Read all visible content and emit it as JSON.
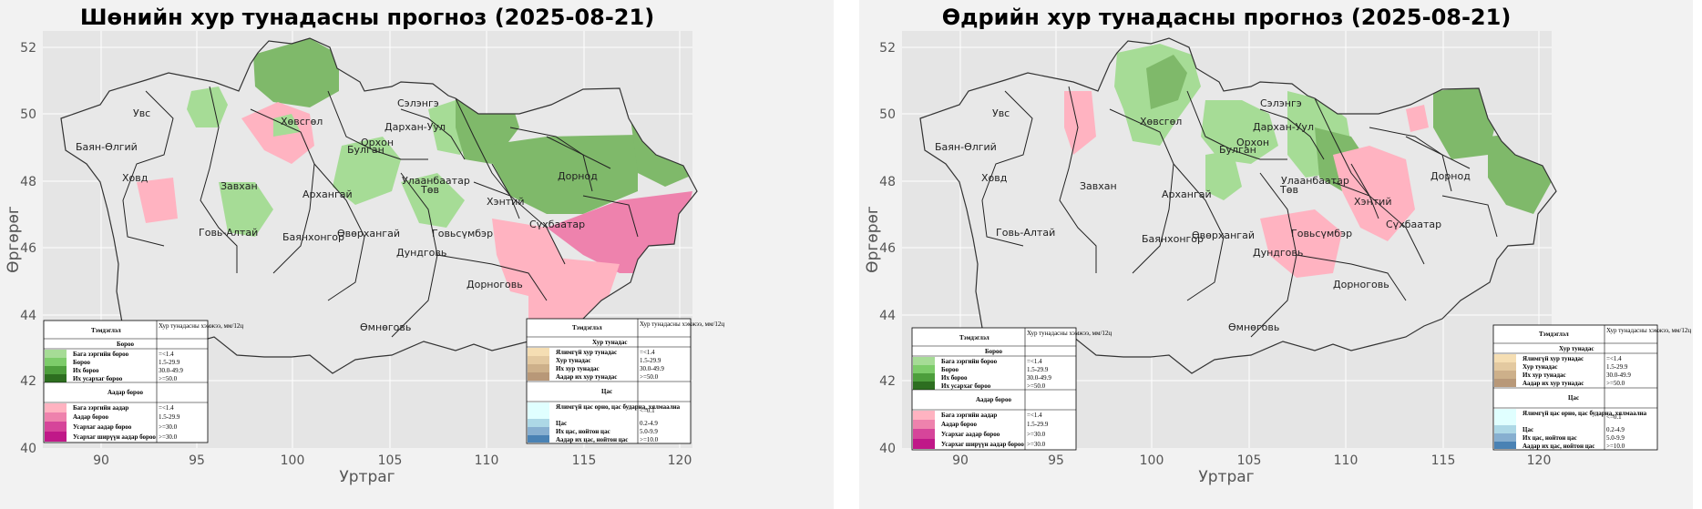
{
  "panels": [
    {
      "title": "Шөнийн хур тунадасны прогноз (2025-08-21)",
      "xlabel": "Уртраг",
      "ylabel": "Өргөрөг",
      "aimag_labels": [
        "Увс",
        "Баян-Өлгий",
        "Ховд",
        "Завхан",
        "Говь-Алтай",
        "Хөвсгөл",
        "Архангай",
        "Баянхонгор",
        "Өвөрхангай",
        "Булган",
        "Орхон",
        "Сэлэнгэ",
        "Дархан-Уул",
        "Төв",
        "Улаанбаатар",
        "Дундговь",
        "Говьсүмбэр",
        "Хэнтий",
        "Дорнод",
        "Сүхбаатар",
        "Дорноговь",
        "Өмнөговь"
      ]
    },
    {
      "title": "Өдрийн хур тунадасны прогноз (2025-08-21)",
      "xlabel": "Уртраг",
      "ylabel": "Өргөрөг",
      "aimag_labels": [
        "Увс",
        "Баян-Өлгий",
        "Ховд",
        "Завхан",
        "Говь-Алтай",
        "Хөвсгөл",
        "Архангай",
        "Баянхонгор",
        "Өвөрхангай",
        "Булган",
        "Орхон",
        "Сэлэнгэ",
        "Дархан-Уул",
        "Төв",
        "Улаанбаатар",
        "Дундговь",
        "Говьсүмбэр",
        "Хэнтий",
        "Дорнод",
        "Сүхбаатар",
        "Дорноговь",
        "Өмнөговь"
      ]
    }
  ],
  "axes": {
    "x_ticks": [
      "90",
      "95",
      "100",
      "105",
      "110",
      "115",
      "120"
    ],
    "y_ticks": [
      "40",
      "42",
      "44",
      "46",
      "48",
      "50",
      "52"
    ],
    "xlim": [
      87,
      121
    ],
    "ylim": [
      40,
      52.5
    ]
  },
  "legend_left": {
    "header_col1": "Тэмдэглэл",
    "header_col2": "Хур тунадасны хэмжээ, мм/12ц",
    "group1": "Бороо",
    "rain_rows": [
      {
        "label": "Бага зэргийн бороо",
        "value": "=<1.4",
        "color": "#a6dc96"
      },
      {
        "label": "Бороо",
        "value": "1.5-29.9",
        "color": "#7dcc6a"
      },
      {
        "label": "Их бороо",
        "value": "30.0-49.9",
        "color": "#4d9e3c"
      },
      {
        "label": "Их усархаг бороо",
        "value": ">=50.0",
        "color": "#2d6e20"
      }
    ],
    "group2": "Аадар бороо",
    "shower_rows": [
      {
        "label": "Бага зэргийн аадар",
        "value": "=<1.4",
        "color": "#ffb3c1"
      },
      {
        "label": "Аадар бороо",
        "value": "1.5-29.9",
        "color": "#ee82ad"
      },
      {
        "label": "Усархаг аадар бороо",
        "value": ">=30.0",
        "color": "#d6459a"
      },
      {
        "label": "Усархаг ширүүн аадар бороо",
        "value": ">=30.0",
        "color": "#c01888"
      }
    ]
  },
  "legend_right": {
    "header_col1": "Тэмдэглэл",
    "header_col2": "Хур тунадасны хэмжээ, мм/12ц",
    "group1": "Хур тунадас",
    "mix_rows": [
      {
        "label": "Ялимгүй хур тунадас",
        "value": "=<1.4",
        "color": "#f5deb3"
      },
      {
        "label": "Хур тунадас",
        "value": "1.5-29.9",
        "color": "#e3c9a0"
      },
      {
        "label": "Их хур тунадас",
        "value": "30.0-49.9",
        "color": "#cdb08a"
      },
      {
        "label": "Аадар их хур тунадас",
        "value": ">=50.0",
        "color": "#b89878"
      }
    ],
    "group2": "Цас",
    "snow_rows": [
      {
        "label": "Ялимгүй цас орно, цас бударна, хялмаална",
        "value": "<=0.1",
        "color": "#e0ffff"
      },
      {
        "label": "Цас",
        "value": "0.2-4.9",
        "color": "#add8e6"
      },
      {
        "label": "Их цас, нойтон цас",
        "value": "5.0-9.9",
        "color": "#87afd0"
      },
      {
        "label": "Аадар их цас, нойтон цас",
        "value": ">=10.0",
        "color": "#4a82b4"
      }
    ]
  },
  "colors": {
    "panel_bg": "#f2f2f2",
    "plot_bg": "#e5e5e5",
    "grid": "#ffffff",
    "light_green": "#a6dc96",
    "mid_green": "#7fb96a",
    "dark_green": "#5fa04c",
    "light_pink": "#ffb3c1",
    "mid_pink": "#ee82ad",
    "border": "#222222"
  }
}
